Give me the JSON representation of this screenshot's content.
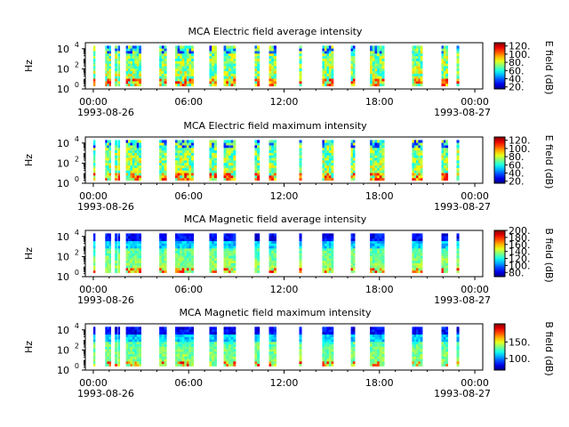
{
  "figure": {
    "start_date": "1993-08-26",
    "end_date": "1993-08-27"
  },
  "chart_data": [
    {
      "type": "heatmap",
      "title": "MCA  Electric field average intensity",
      "ylabel": "Hz",
      "cbar_label": "E field (dB)",
      "y_ticks": [
        "10^0",
        "10^2",
        "10^4"
      ],
      "y_range_log10": [
        0,
        4.6
      ],
      "x_ticks": [
        "00:00",
        "06:00",
        "12:00",
        "18:00",
        "00:00"
      ],
      "x_dates": [
        "1993-08-26",
        "1993-08-27"
      ],
      "x_range_hours": [
        -0.5,
        24.5
      ],
      "cbar_ticks": [
        "20.",
        "40.",
        "60.",
        "80.",
        "100.",
        "120."
      ],
      "cbar_range": [
        15,
        128
      ],
      "colormap": "jet"
    },
    {
      "type": "heatmap",
      "title": "MCA  Electric field maximum intensity",
      "ylabel": "Hz",
      "cbar_label": "E field (dB)",
      "y_ticks": [
        "10^0",
        "10^2",
        "10^4"
      ],
      "y_range_log10": [
        0,
        4.6
      ],
      "x_ticks": [
        "00:00",
        "06:00",
        "12:00",
        "18:00",
        "00:00"
      ],
      "x_dates": [
        "1993-08-26",
        "1993-08-27"
      ],
      "x_range_hours": [
        -0.5,
        24.5
      ],
      "cbar_ticks": [
        "20.",
        "40.",
        "60.",
        "80.",
        "100.",
        "120."
      ],
      "cbar_range": [
        15,
        128
      ],
      "colormap": "jet"
    },
    {
      "type": "heatmap",
      "title": "MCA  Magnetic field average intensity",
      "ylabel": "Hz",
      "cbar_label": "B field (dB)",
      "y_ticks": [
        "10^0",
        "10^2",
        "10^4"
      ],
      "y_range_log10": [
        0,
        4.6
      ],
      "x_ticks": [
        "00:00",
        "06:00",
        "12:00",
        "18:00",
        "00:00"
      ],
      "x_dates": [
        "1993-08-26",
        "1993-08-27"
      ],
      "x_range_hours": [
        -0.5,
        24.5
      ],
      "cbar_ticks": [
        "80.",
        "100.",
        "120.",
        "140.",
        "160.",
        "180.",
        "200."
      ],
      "cbar_range": [
        68,
        200
      ],
      "colormap": "jet"
    },
    {
      "type": "heatmap",
      "title": "MCA  Magnetic field maximum intensity",
      "ylabel": "Hz",
      "cbar_label": "B field (dB)",
      "y_ticks": [
        "10^0",
        "10^2",
        "10^4"
      ],
      "y_range_log10": [
        0,
        4.6
      ],
      "x_ticks": [
        "00:00",
        "06:00",
        "12:00",
        "18:00",
        "00:00"
      ],
      "x_dates": [
        "1993-08-26",
        "1993-08-27"
      ],
      "x_range_hours": [
        -0.5,
        24.5
      ],
      "cbar_ticks": [
        "100.",
        "150."
      ],
      "cbar_range": [
        65,
        205
      ],
      "colormap": "jet"
    }
  ],
  "data_segments_hours": [
    [
      0.0,
      0.1
    ],
    [
      0.75,
      1.1
    ],
    [
      1.35,
      1.5
    ],
    [
      1.55,
      1.65
    ],
    [
      2.05,
      3.0
    ],
    [
      4.15,
      4.6
    ],
    [
      5.15,
      6.3
    ],
    [
      7.3,
      7.75
    ],
    [
      8.2,
      8.95
    ],
    [
      10.15,
      10.45
    ],
    [
      11.05,
      11.5
    ],
    [
      12.95,
      13.1
    ],
    [
      14.4,
      15.1
    ],
    [
      16.2,
      16.45
    ],
    [
      17.4,
      18.3
    ],
    [
      20.05,
      20.7
    ],
    [
      21.9,
      22.3
    ],
    [
      22.85,
      23.0
    ]
  ]
}
